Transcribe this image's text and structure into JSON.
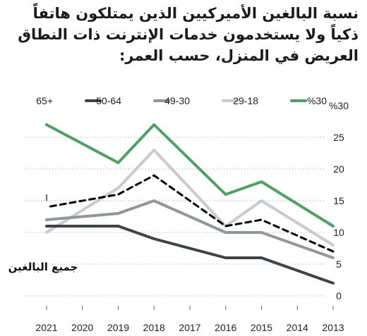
{
  "title": "نسبة البالغين الأميركيين الذين يمتلكون هاتفاً ذكياً ولا يستخدمون خدمات الإنترنت ذات النطاق العريض في المنزل، حسب العمر:",
  "chart_data": {
    "type": "line",
    "title": "نسبة البالغين الأميركيين الذين يمتلكون هاتفاً ذكياً ولا يستخدمون خدمات الإنترنت ذات النطاق العريض في المنزل، حسب العمر:",
    "x": [
      2013,
      2014,
      2015,
      2016,
      2017,
      2018,
      2019,
      2020,
      2021
    ],
    "x_tick_labels": [
      "2013",
      "2014",
      "2015",
      "2016",
      "2017",
      "2018",
      "2019",
      "2020",
      "2021"
    ],
    "x_direction": "right-to-left",
    "y_tick_labels": [
      "0",
      "5",
      "10",
      "15",
      "20",
      "25",
      "%30"
    ],
    "ylim": [
      0,
      30
    ],
    "y_axis_position": "right",
    "grid": "horizontal dashed",
    "legend_position": "top",
    "series": [
      {
        "name": "18-29",
        "label": "29-18",
        "color": "#c5cbd0",
        "style": "solid",
        "x": [
          2013,
          2015,
          2016,
          2018,
          2019,
          2021
        ],
        "values": [
          8,
          15,
          11,
          23,
          17,
          10
        ]
      },
      {
        "name": "30-49",
        "label": "49-30",
        "color": "#8f979c",
        "style": "solid",
        "x": [
          2013,
          2015,
          2016,
          2018,
          2019,
          2021
        ],
        "values": [
          6,
          10,
          10,
          15,
          13,
          12
        ]
      },
      {
        "name": "50-64",
        "label": "50-64",
        "color": "#3d4347",
        "style": "solid",
        "x": [
          2013,
          2015,
          2016,
          2018,
          2019,
          2021
        ],
        "values": [
          2,
          6,
          6,
          9,
          11,
          11
        ]
      },
      {
        "name": "65+",
        "label": "65+",
        "color": "#3d4347",
        "style": "solid",
        "x": [],
        "values": []
      },
      {
        "name": "جميع البالغين",
        "label": "جميع البالغين",
        "color": "#000000",
        "style": "dashed",
        "x": [
          2013,
          2015,
          2016,
          2018,
          2019,
          2021
        ],
        "values": [
          7,
          12,
          11,
          19,
          16,
          14
        ]
      },
      {
        "name": "green",
        "label": "",
        "color": "#4fa063",
        "style": "solid",
        "x": [
          2013,
          2015,
          2016,
          2018,
          2019,
          2021
        ],
        "values": [
          11,
          18,
          16,
          27,
          21,
          27
        ]
      }
    ],
    "annotations": [
      {
        "text": "جميع البالغين",
        "series": "جميع البالغين"
      }
    ]
  }
}
